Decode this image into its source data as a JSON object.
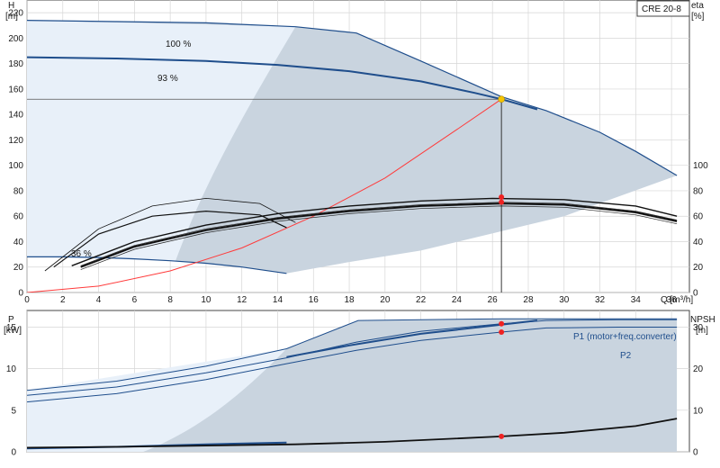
{
  "chart_data": [
    {
      "type": "line",
      "model": "CRE 20-8",
      "xlabel": "Q [m³/h]",
      "ylabel_left": [
        "H",
        "[m]"
      ],
      "ylabel_right": [
        "eta",
        "[%]"
      ],
      "xlim": [
        0,
        37
      ],
      "ylim_left": [
        0,
        230
      ],
      "ylim_right": [
        0,
        230
      ],
      "x_ticks": [
        0,
        2,
        4,
        6,
        8,
        10,
        12,
        14,
        16,
        18,
        20,
        22,
        24,
        26,
        28,
        30,
        32,
        34,
        36
      ],
      "y_ticks_left": [
        0,
        20,
        40,
        60,
        80,
        100,
        120,
        140,
        160,
        180,
        200,
        220
      ],
      "y_ticks_right": [
        0,
        20,
        40,
        60,
        80,
        100
      ],
      "grid": true,
      "curve_labels": [
        "100 %",
        "93 %",
        "36 %"
      ],
      "operating_point": {
        "Q": 26.5,
        "H": 152,
        "eta": [
          75,
          71
        ]
      },
      "series": [
        {
          "key": "h100",
          "x": [
            0,
            5,
            10,
            15,
            18.4,
            22,
            26.5,
            29,
            32,
            34,
            36.3
          ],
          "y": [
            214,
            213,
            212,
            209,
            204,
            182,
            154,
            143,
            126,
            111,
            92
          ]
        },
        {
          "key": "h93",
          "x": [
            0,
            5,
            10,
            14,
            18,
            22,
            25,
            26.5,
            28.5
          ],
          "y": [
            185,
            184,
            182,
            179,
            174,
            166,
            157,
            152,
            144
          ]
        },
        {
          "key": "h36",
          "x": [
            0,
            2,
            4,
            6,
            8,
            10,
            12,
            14.5
          ],
          "y": [
            28,
            28,
            27.5,
            26.5,
            25,
            23,
            20,
            15
          ]
        },
        {
          "key": "system",
          "x": [
            0,
            4,
            8,
            12,
            16,
            20,
            24,
            26.5
          ],
          "y": [
            0,
            5,
            17,
            35,
            60,
            90,
            128,
            152
          ]
        },
        {
          "key": "eta_top",
          "x": [
            2.5,
            6,
            10,
            14,
            18,
            22,
            26,
            30,
            34,
            36.3
          ],
          "y": [
            21,
            40,
            53,
            62,
            68,
            72,
            74,
            73,
            68,
            60
          ]
        },
        {
          "key": "eta_main",
          "x": [
            3,
            6,
            10,
            14,
            18,
            22,
            26.5,
            30,
            34,
            36.3
          ],
          "y": [
            20,
            36,
            49,
            58,
            64,
            68,
            70,
            69,
            63,
            56
          ]
        },
        {
          "key": "eta_low1",
          "x": [
            1,
            4,
            7,
            10,
            13,
            15
          ],
          "y": [
            17,
            50,
            68,
            74,
            70,
            55
          ]
        },
        {
          "key": "eta_low2",
          "x": [
            1.5,
            4,
            7,
            10,
            13,
            14.5
          ],
          "y": [
            20,
            46,
            60,
            64,
            61,
            51
          ]
        }
      ],
      "colors": {
        "envelope": "#c9d4df",
        "light_region": "#e8f0f9",
        "curve_blue": "#1f4e8c",
        "system_curve": "#ff3b3b",
        "duty_point": "#f5c400"
      }
    },
    {
      "type": "line",
      "xlim": [
        0,
        37
      ],
      "ylabel_left": [
        "P",
        "[kW]"
      ],
      "ylabel_right": [
        "NPSH",
        "[m]"
      ],
      "ylim_left": [
        0,
        17
      ],
      "ylim_right": [
        0,
        34
      ],
      "y_ticks_left": [
        0,
        5,
        10,
        15
      ],
      "y_ticks_right": [
        0,
        10,
        20,
        30
      ],
      "grid": true,
      "legend": [
        "P1 (motor+freq.converter)",
        "P2"
      ],
      "series": [
        {
          "key": "p1",
          "x": [
            0,
            5,
            10,
            14.5,
            18.4,
            22,
            26.5,
            29,
            33,
            36.3
          ],
          "y": [
            6.8,
            7.8,
            9.5,
            11.3,
            13.2,
            14.5,
            15.4,
            15.8,
            15.9,
            15.9
          ]
        },
        {
          "key": "p2",
          "x": [
            0,
            5,
            10,
            14.5,
            18.4,
            22,
            26.5,
            29,
            33,
            36.3
          ],
          "y": [
            6.0,
            7.0,
            8.7,
            10.6,
            12.2,
            13.4,
            14.4,
            14.9,
            15.0,
            15.0
          ]
        },
        {
          "key": "p_env",
          "x": [
            0,
            5,
            10,
            14.5,
            18.5,
            22,
            26.5,
            33,
            36.3
          ],
          "y": [
            7.4,
            8.5,
            10.3,
            12.4,
            15.8,
            15.9,
            16.0,
            16.0,
            16.0
          ]
        },
        {
          "key": "p1_93",
          "x": [
            14.5,
            18,
            22,
            26.5,
            28.5
          ],
          "y": [
            11.4,
            12.8,
            14.2,
            15.3,
            15.8
          ]
        },
        {
          "key": "p_36",
          "x": [
            0,
            5,
            10,
            14.5
          ],
          "y": [
            0.4,
            0.6,
            0.9,
            1.1
          ]
        },
        {
          "key": "npsh",
          "x": [
            0,
            5,
            10,
            15,
            20,
            26.5,
            30,
            34,
            36.3
          ],
          "y": [
            1.0,
            1.2,
            1.5,
            1.8,
            2.4,
            3.7,
            4.6,
            6.2,
            8.0
          ]
        }
      ],
      "markers": {
        "p1_at_duty": 15.4,
        "p2_at_duty": 14.4,
        "npsh_at_duty": 3.7
      }
    }
  ]
}
